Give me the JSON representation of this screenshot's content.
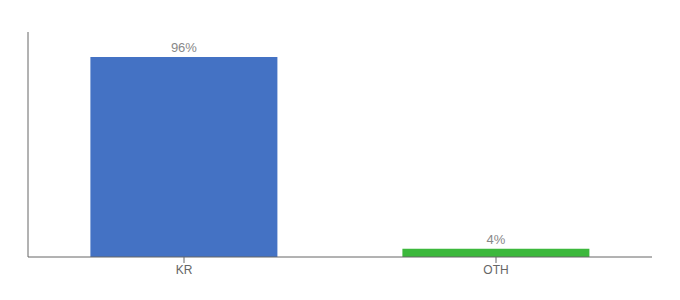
{
  "chart_data": {
    "type": "bar",
    "categories": [
      "KR",
      "OTH"
    ],
    "values": [
      96,
      4
    ],
    "colors": [
      "#4472C4",
      "#3CB83C"
    ],
    "value_labels": [
      "96%",
      "4%"
    ],
    "data_labels": true,
    "ylim": [
      0,
      108
    ],
    "yticks": [],
    "tick_labels": "x",
    "grid": false
  }
}
